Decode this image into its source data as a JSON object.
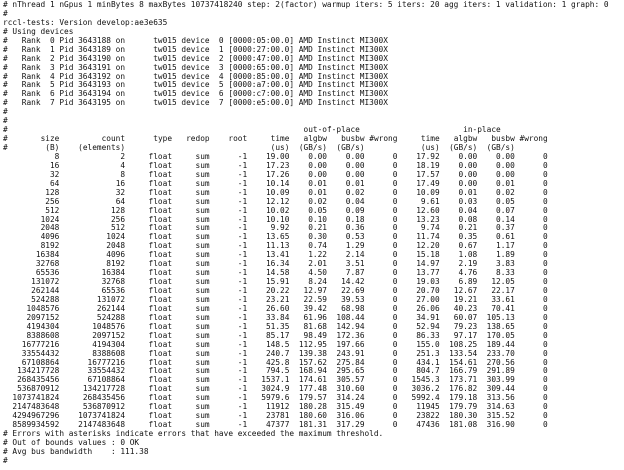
{
  "header": {
    "lines": [
      "# nThread 1 nGpus 1 minBytes 8 maxBytes 10737418240 step: 2(factor) warmup iters: 5 iters: 20 agg iters: 1 validation: 1 graph: 0",
      "#",
      "rccl-tests: Version develop:ae3e635",
      "# Using devices",
      "#   Rank  0 Pid 3643188 on      tw015 device  0 [0000:05:00.0] AMD Instinct MI300X",
      "#   Rank  1 Pid 3643189 on      tw015 device  1 [0000:27:00.0] AMD Instinct MI300X",
      "#   Rank  2 Pid 3643190 on      tw015 device  2 [0000:47:00.0] AMD Instinct MI300X",
      "#   Rank  3 Pid 3643191 on      tw015 device  3 [0000:65:00.0] AMD Instinct MI300X",
      "#   Rank  4 Pid 3643192 on      tw015 device  4 [0000:85:00.0] AMD Instinct MI300X",
      "#   Rank  5 Pid 3643193 on      tw015 device  5 [0000:a7:00.0] AMD Instinct MI300X",
      "#   Rank  6 Pid 3643194 on      tw015 device  6 [0000:c7:00.0] AMD Instinct MI300X",
      "#   Rank  7 Pid 3643195 on      tw015 device  7 [0000:e5:00.0] AMD Instinct MI300X",
      "#",
      "#"
    ]
  },
  "table": {
    "prefix": "#",
    "groups": [
      "out-of-place",
      "in-place"
    ],
    "columns": [
      "size",
      "count",
      "type",
      "redop",
      "root",
      "time",
      "algbw",
      "busbw",
      "#wrong",
      "time",
      "algbw",
      "busbw",
      "#wrong"
    ],
    "units": [
      "(B)",
      "(elements)",
      "",
      "",
      "",
      "(us)",
      "(GB/s)",
      "(GB/s)",
      "",
      "(us)",
      "(GB/s)",
      "(GB/s)",
      ""
    ],
    "rows": [
      [
        "8",
        "2",
        "float",
        "sum",
        "-1",
        "19.00",
        "0.00",
        "0.00",
        "0",
        "17.92",
        "0.00",
        "0.00",
        "0"
      ],
      [
        "16",
        "4",
        "float",
        "sum",
        "-1",
        "17.23",
        "0.00",
        "0.00",
        "0",
        "18.19",
        "0.00",
        "0.00",
        "0"
      ],
      [
        "32",
        "8",
        "float",
        "sum",
        "-1",
        "17.26",
        "0.00",
        "0.00",
        "0",
        "17.57",
        "0.00",
        "0.00",
        "0"
      ],
      [
        "64",
        "16",
        "float",
        "sum",
        "-1",
        "10.14",
        "0.01",
        "0.01",
        "0",
        "17.49",
        "0.00",
        "0.01",
        "0"
      ],
      [
        "128",
        "32",
        "float",
        "sum",
        "-1",
        "10.09",
        "0.01",
        "0.02",
        "0",
        "10.09",
        "0.01",
        "0.02",
        "0"
      ],
      [
        "256",
        "64",
        "float",
        "sum",
        "-1",
        "12.12",
        "0.02",
        "0.04",
        "0",
        "9.61",
        "0.03",
        "0.05",
        "0"
      ],
      [
        "512",
        "128",
        "float",
        "sum",
        "-1",
        "10.02",
        "0.05",
        "0.09",
        "0",
        "12.60",
        "0.04",
        "0.07",
        "0"
      ],
      [
        "1024",
        "256",
        "float",
        "sum",
        "-1",
        "10.10",
        "0.10",
        "0.18",
        "0",
        "13.23",
        "0.08",
        "0.14",
        "0"
      ],
      [
        "2048",
        "512",
        "float",
        "sum",
        "-1",
        "9.92",
        "0.21",
        "0.36",
        "0",
        "9.74",
        "0.21",
        "0.37",
        "0"
      ],
      [
        "4096",
        "1024",
        "float",
        "sum",
        "-1",
        "13.65",
        "0.30",
        "0.53",
        "0",
        "11.74",
        "0.35",
        "0.61",
        "0"
      ],
      [
        "8192",
        "2048",
        "float",
        "sum",
        "-1",
        "11.13",
        "0.74",
        "1.29",
        "0",
        "12.20",
        "0.67",
        "1.17",
        "0"
      ],
      [
        "16384",
        "4096",
        "float",
        "sum",
        "-1",
        "13.41",
        "1.22",
        "2.14",
        "0",
        "15.18",
        "1.08",
        "1.89",
        "0"
      ],
      [
        "32768",
        "8192",
        "float",
        "sum",
        "-1",
        "16.34",
        "2.01",
        "3.51",
        "0",
        "14.97",
        "2.19",
        "3.83",
        "0"
      ],
      [
        "65536",
        "16384",
        "float",
        "sum",
        "-1",
        "14.58",
        "4.50",
        "7.87",
        "0",
        "13.77",
        "4.76",
        "8.33",
        "0"
      ],
      [
        "131072",
        "32768",
        "float",
        "sum",
        "-1",
        "15.91",
        "8.24",
        "14.42",
        "0",
        "19.03",
        "6.89",
        "12.05",
        "0"
      ],
      [
        "262144",
        "65536",
        "float",
        "sum",
        "-1",
        "20.22",
        "12.97",
        "22.69",
        "0",
        "20.70",
        "12.67",
        "22.17",
        "0"
      ],
      [
        "524288",
        "131072",
        "float",
        "sum",
        "-1",
        "23.21",
        "22.59",
        "39.53",
        "0",
        "27.00",
        "19.21",
        "33.61",
        "0"
      ],
      [
        "1048576",
        "262144",
        "float",
        "sum",
        "-1",
        "26.60",
        "39.42",
        "68.98",
        "0",
        "26.06",
        "40.23",
        "70.41",
        "0"
      ],
      [
        "2097152",
        "524288",
        "float",
        "sum",
        "-1",
        "33.84",
        "61.96",
        "108.44",
        "0",
        "34.91",
        "60.07",
        "105.13",
        "0"
      ],
      [
        "4194304",
        "1048576",
        "float",
        "sum",
        "-1",
        "51.35",
        "81.68",
        "142.94",
        "0",
        "52.94",
        "79.23",
        "138.65",
        "0"
      ],
      [
        "8388608",
        "2097152",
        "float",
        "sum",
        "-1",
        "85.17",
        "98.49",
        "172.36",
        "0",
        "86.33",
        "97.17",
        "170.05",
        "0"
      ],
      [
        "16777216",
        "4194304",
        "float",
        "sum",
        "-1",
        "148.5",
        "112.95",
        "197.66",
        "0",
        "155.0",
        "108.25",
        "189.44",
        "0"
      ],
      [
        "33554432",
        "8388608",
        "float",
        "sum",
        "-1",
        "240.7",
        "139.38",
        "243.91",
        "0",
        "251.3",
        "133.54",
        "233.70",
        "0"
      ],
      [
        "67108864",
        "16777216",
        "float",
        "sum",
        "-1",
        "425.8",
        "157.62",
        "275.84",
        "0",
        "434.1",
        "154.61",
        "270.56",
        "0"
      ],
      [
        "134217728",
        "33554432",
        "float",
        "sum",
        "-1",
        "794.5",
        "168.94",
        "295.65",
        "0",
        "804.7",
        "166.79",
        "291.89",
        "0"
      ],
      [
        "268435456",
        "67108864",
        "float",
        "sum",
        "-1",
        "1537.1",
        "174.61",
        "305.57",
        "0",
        "1545.3",
        "173.71",
        "303.99",
        "0"
      ],
      [
        "536870912",
        "134217728",
        "float",
        "sum",
        "-1",
        "3024.9",
        "177.48",
        "310.60",
        "0",
        "3036.2",
        "176.82",
        "309.44",
        "0"
      ],
      [
        "1073741824",
        "268435456",
        "float",
        "sum",
        "-1",
        "5979.6",
        "179.57",
        "314.24",
        "0",
        "5992.4",
        "179.18",
        "313.56",
        "0"
      ],
      [
        "2147483648",
        "536870912",
        "float",
        "sum",
        "-1",
        "11912",
        "180.28",
        "315.49",
        "0",
        "11945",
        "179.79",
        "314.63",
        "0"
      ],
      [
        "4294967296",
        "1073741824",
        "float",
        "sum",
        "-1",
        "23781",
        "180.60",
        "316.06",
        "0",
        "23822",
        "180.30",
        "315.52",
        "0"
      ],
      [
        "8589934592",
        "2147483648",
        "float",
        "sum",
        "-1",
        "47377",
        "181.31",
        "317.29",
        "0",
        "47436",
        "181.08",
        "316.90",
        "0"
      ]
    ]
  },
  "footer": {
    "lines": [
      "# Errors with asterisks indicate errors that have exceeded the maximum threshold.",
      "# Out of bounds values : 0 OK",
      "# Avg bus bandwidth    : 111.38",
      "#"
    ]
  }
}
